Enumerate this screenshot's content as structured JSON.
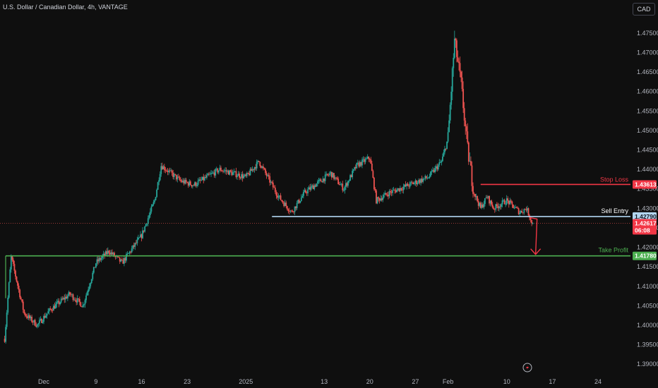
{
  "header": {
    "symbol_title": "U.S. Dollar / Canadian Dollar, 4h, VANTAGE",
    "currency": "CAD"
  },
  "colors": {
    "background": "#0f0f0f",
    "up": "#26a69a",
    "down": "#ef5350",
    "stop_loss": "#f23645",
    "sell_entry": "#b2d6f0",
    "take_profit": "#4caf50",
    "axis_text": "#b2b5be"
  },
  "levels": {
    "stop_loss": {
      "label": "Stop Loss",
      "price": 1.43613,
      "price_text": "1.43613"
    },
    "sell_entry": {
      "label": "Sell Entry",
      "price": 1.4279,
      "price_text": "1.42790"
    },
    "take_profit": {
      "label": "Take Profit",
      "price": 1.4178,
      "price_text": "1.41780"
    },
    "current": {
      "price": 1.42617,
      "price_text": "1.42617",
      "countdown": "06:08"
    }
  },
  "chart_data": {
    "type": "candlestick",
    "title": "U.S. Dollar / Canadian Dollar, 4h, VANTAGE",
    "ylim": [
      1.3875,
      1.4795
    ],
    "yticks": [
      "1.47500",
      "1.47000",
      "1.46500",
      "1.46000",
      "1.45500",
      "1.45000",
      "1.44500",
      "1.44000",
      "1.43500",
      "1.43000",
      "1.42500",
      "1.42000",
      "1.41500",
      "1.41000",
      "1.40500",
      "1.40000",
      "1.39500",
      "1.39000"
    ],
    "ytick_values": [
      1.475,
      1.47,
      1.465,
      1.46,
      1.455,
      1.45,
      1.445,
      1.44,
      1.435,
      1.43,
      1.425,
      1.42,
      1.415,
      1.41,
      1.405,
      1.4,
      1.395,
      1.39
    ],
    "xticks": [
      "Dec",
      "9",
      "16",
      "23",
      "2025",
      "13",
      "20",
      "27",
      "Feb",
      "10",
      "17",
      "24"
    ],
    "xtick_dates": [
      "2024-12-01",
      "2024-12-09",
      "2024-12-16",
      "2024-12-23",
      "2025-01-01",
      "2025-01-13",
      "2025-01-20",
      "2025-01-27",
      "2025-02-01",
      "2025-02-10",
      "2025-02-17",
      "2025-02-24"
    ],
    "x_range": [
      "2024-11-25",
      "2025-03-01"
    ],
    "path_keypoints": [
      {
        "date": "2024-11-25",
        "price": 1.3965
      },
      {
        "date": "2024-11-26",
        "price": 1.4175
      },
      {
        "date": "2024-11-28",
        "price": 1.403
      },
      {
        "date": "2024-11-30",
        "price": 1.4
      },
      {
        "date": "2024-12-02",
        "price": 1.404
      },
      {
        "date": "2024-12-05",
        "price": 1.408
      },
      {
        "date": "2024-12-07",
        "price": 1.405
      },
      {
        "date": "2024-12-09",
        "price": 1.416
      },
      {
        "date": "2024-12-11",
        "price": 1.419
      },
      {
        "date": "2024-12-13",
        "price": 1.416
      },
      {
        "date": "2024-12-16",
        "price": 1.423
      },
      {
        "date": "2024-12-18",
        "price": 1.432
      },
      {
        "date": "2024-12-19",
        "price": 1.441
      },
      {
        "date": "2024-12-22",
        "price": 1.437
      },
      {
        "date": "2024-12-24",
        "price": 1.436
      },
      {
        "date": "2024-12-28",
        "price": 1.44
      },
      {
        "date": "2025-01-01",
        "price": 1.438
      },
      {
        "date": "2025-01-03",
        "price": 1.442
      },
      {
        "date": "2025-01-06",
        "price": 1.433
      },
      {
        "date": "2025-01-08",
        "price": 1.429
      },
      {
        "date": "2025-01-10",
        "price": 1.434
      },
      {
        "date": "2025-01-14",
        "price": 1.439
      },
      {
        "date": "2025-01-16",
        "price": 1.435
      },
      {
        "date": "2025-01-18",
        "price": 1.441
      },
      {
        "date": "2025-01-20",
        "price": 1.443
      },
      {
        "date": "2025-01-21",
        "price": 1.432
      },
      {
        "date": "2025-01-23",
        "price": 1.434
      },
      {
        "date": "2025-01-26",
        "price": 1.436
      },
      {
        "date": "2025-01-29",
        "price": 1.438
      },
      {
        "date": "2025-01-31",
        "price": 1.442
      },
      {
        "date": "2025-02-01",
        "price": 1.448
      },
      {
        "date": "2025-02-02",
        "price": 1.473
      },
      {
        "date": "2025-02-03",
        "price": 1.462
      },
      {
        "date": "2025-02-04",
        "price": 1.445
      },
      {
        "date": "2025-02-05",
        "price": 1.434
      },
      {
        "date": "2025-02-06",
        "price": 1.43
      },
      {
        "date": "2025-02-07",
        "price": 1.433
      },
      {
        "date": "2025-02-08",
        "price": 1.43
      },
      {
        "date": "2025-02-10",
        "price": 1.432
      },
      {
        "date": "2025-02-12",
        "price": 1.429
      },
      {
        "date": "2025-02-13",
        "price": 1.43
      },
      {
        "date": "2025-02-14",
        "price": 1.42617
      }
    ]
  }
}
